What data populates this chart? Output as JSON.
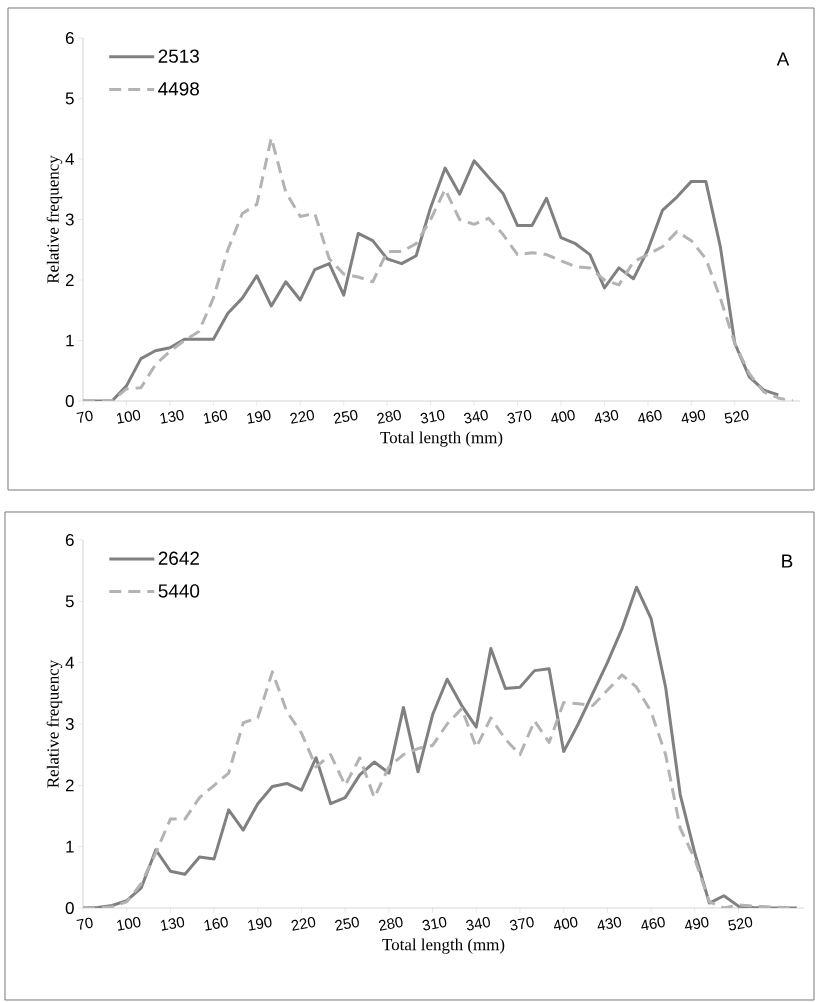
{
  "chart_data": [
    {
      "type": "line",
      "xlabel": "Total length (mm)",
      "ylabel": "Relative frequency",
      "annotations": [
        "A"
      ],
      "x": [
        70,
        80,
        90,
        100,
        110,
        120,
        130,
        140,
        150,
        160,
        170,
        180,
        190,
        200,
        210,
        220,
        230,
        240,
        250,
        260,
        270,
        280,
        290,
        300,
        310,
        320,
        330,
        340,
        350,
        360,
        370,
        380,
        390,
        400,
        410,
        420,
        430,
        440,
        450,
        460,
        470,
        480,
        490,
        500,
        510,
        520,
        530,
        540,
        550,
        560
      ],
      "xlim": [
        70,
        565
      ],
      "ylim": [
        0,
        6
      ],
      "xticks": [
        70,
        100,
        130,
        160,
        190,
        220,
        250,
        280,
        310,
        340,
        370,
        400,
        430,
        460,
        490,
        520
      ],
      "yticks": [
        0,
        1,
        2,
        3,
        4,
        5,
        6
      ],
      "legend": "top left",
      "grid": false,
      "series": [
        {
          "name": "2513",
          "color": "#808080",
          "line_style": "solid",
          "values": [
            0,
            0,
            0,
            0.25,
            0.7,
            0.83,
            0.88,
            1.02,
            1.02,
            1.02,
            1.45,
            1.7,
            2.07,
            1.57,
            1.97,
            1.67,
            2.17,
            2.27,
            1.75,
            2.77,
            2.65,
            2.35,
            2.27,
            2.4,
            3.2,
            3.85,
            3.42,
            3.97,
            3.7,
            3.43,
            2.9,
            2.9,
            3.35,
            2.7,
            2.6,
            2.42,
            1.87,
            2.2,
            2.02,
            2.5,
            3.15,
            3.37,
            3.63,
            3.63,
            2.55,
            0.95,
            0.4,
            0.18,
            0.1,
            null
          ]
        },
        {
          "name": "4498",
          "color": "#b3b3b3",
          "line_style": "dashed",
          "values": [
            0,
            0,
            0,
            0.2,
            0.22,
            0.6,
            0.82,
            1.0,
            1.15,
            1.7,
            2.5,
            3.1,
            3.25,
            4.35,
            3.45,
            3.05,
            3.1,
            2.35,
            2.1,
            2.05,
            1.97,
            2.47,
            2.47,
            2.6,
            3.0,
            3.5,
            3.0,
            2.92,
            3.02,
            2.75,
            2.42,
            2.45,
            2.42,
            2.32,
            2.22,
            2.2,
            2.0,
            1.92,
            2.3,
            2.42,
            2.55,
            2.8,
            2.65,
            2.35,
            1.7,
            0.95,
            0.45,
            0.15,
            0.05,
            0
          ]
        }
      ]
    },
    {
      "type": "line",
      "xlabel": "Total length (mm)",
      "ylabel": "Relative frequency",
      "annotations": [
        "B"
      ],
      "x": [
        70,
        80,
        90,
        100,
        110,
        120,
        130,
        140,
        150,
        160,
        170,
        180,
        190,
        200,
        210,
        220,
        230,
        240,
        250,
        260,
        270,
        280,
        290,
        300,
        310,
        320,
        330,
        340,
        350,
        360,
        370,
        380,
        390,
        400,
        410,
        420,
        430,
        440,
        450,
        460,
        470,
        480,
        490,
        500,
        510,
        520,
        530,
        540,
        550,
        560
      ],
      "xlim": [
        70,
        565
      ],
      "ylim": [
        0,
        6
      ],
      "xticks": [
        70,
        100,
        130,
        160,
        190,
        220,
        250,
        280,
        310,
        340,
        370,
        400,
        430,
        460,
        490,
        520
      ],
      "yticks": [
        0,
        1,
        2,
        3,
        4,
        5,
        6
      ],
      "legend": "top left",
      "grid": false,
      "series": [
        {
          "name": "2642",
          "color": "#808080",
          "line_style": "solid",
          "values": [
            0,
            0.01,
            0.04,
            0.12,
            0.33,
            0.95,
            0.6,
            0.55,
            0.83,
            0.8,
            1.6,
            1.27,
            1.7,
            1.98,
            2.03,
            1.92,
            2.45,
            1.7,
            1.8,
            2.17,
            2.38,
            2.2,
            3.27,
            2.22,
            3.15,
            3.73,
            3.3,
            2.95,
            4.23,
            3.58,
            3.6,
            3.87,
            3.9,
            2.55,
            3.0,
            3.5,
            4.0,
            4.55,
            5.23,
            4.72,
            3.6,
            1.85,
            0.9,
            0.08,
            0.2,
            0.03,
            0.01,
            0,
            0,
            0
          ]
        },
        {
          "name": "5440",
          "color": "#b3b3b3",
          "line_style": "dashed",
          "values": [
            0,
            0,
            0.02,
            0.1,
            0.4,
            0.9,
            1.45,
            1.45,
            1.8,
            2.0,
            2.2,
            3.02,
            3.1,
            3.85,
            3.2,
            2.85,
            2.3,
            2.5,
            2.0,
            2.45,
            1.8,
            2.3,
            2.5,
            2.6,
            2.65,
            3.0,
            3.25,
            2.62,
            3.1,
            2.75,
            2.5,
            3.05,
            2.7,
            3.35,
            3.33,
            3.3,
            3.55,
            3.8,
            3.6,
            3.2,
            2.5,
            1.3,
            0.8,
            0.1,
            0.0,
            0.05,
            0.03,
            0.02,
            0.01,
            0
          ]
        }
      ]
    }
  ]
}
